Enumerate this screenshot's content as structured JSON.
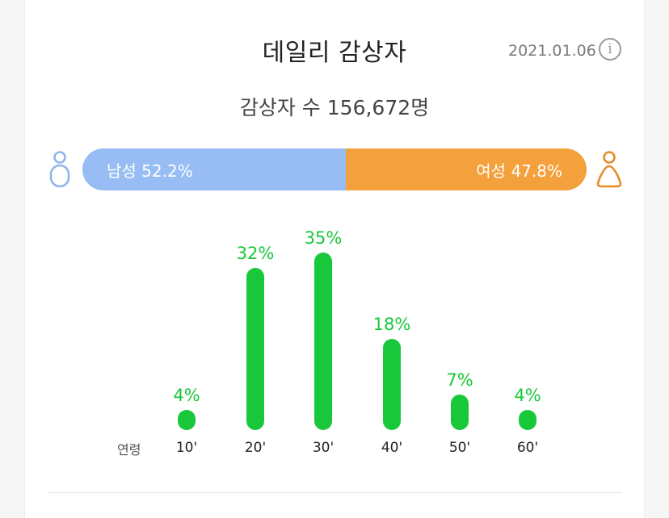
{
  "header": {
    "title": "데일리 감상자",
    "date": "2021.01.06"
  },
  "summary": {
    "count_text": "감상자 수 156,672명"
  },
  "gender": {
    "male_label": "남성 52.2%",
    "female_label": "여성 47.8%",
    "male_share": 52.2,
    "female_share": 47.8,
    "male_color": "#97bdf4",
    "female_color": "#f4a03c",
    "male_icon": "male-person-icon",
    "female_icon": "female-person-icon"
  },
  "chart_data": {
    "type": "bar",
    "categories": [
      "10'",
      "20'",
      "30'",
      "40'",
      "50'",
      "60'"
    ],
    "values": [
      4,
      32,
      35,
      18,
      7,
      4
    ],
    "value_labels": [
      "4%",
      "32%",
      "35%",
      "18%",
      "7%",
      "4%"
    ],
    "xlabel": "연령",
    "ylabel": "",
    "ylim": [
      0,
      35
    ],
    "bar_color": "#19c83a",
    "grid": false
  }
}
